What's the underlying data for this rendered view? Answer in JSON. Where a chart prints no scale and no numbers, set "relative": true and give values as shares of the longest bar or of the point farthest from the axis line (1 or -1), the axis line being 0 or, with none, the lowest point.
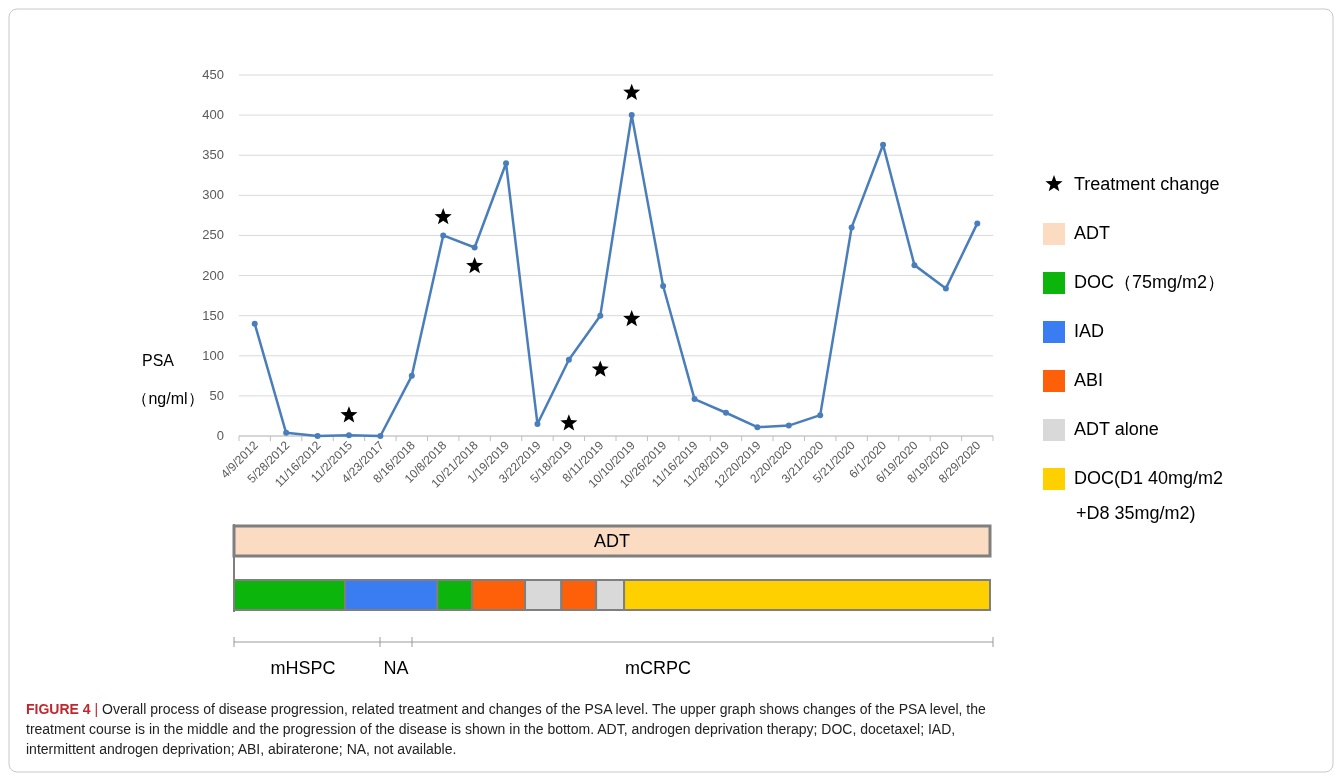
{
  "chart_data": [
    {
      "type": "line",
      "ylabel": "PSA\n（ng/ml）",
      "categories": [
        "4/9/2012",
        "5/28/2012",
        "11/16/2012",
        "11/2/2015",
        "4/23/2017",
        "8/16/2018",
        "10/8/2018",
        "10/21/2018",
        "1/19/2019",
        "3/22/2019",
        "5/18/2019",
        "8/11/2019",
        "10/10/2019",
        "10/26/2019",
        "11/16/2019",
        "11/28/2019",
        "12/20/2019",
        "2/20/2020",
        "3/21/2020",
        "5/21/2020",
        "6/1/2020",
        "6/19/2020",
        "8/19/2020",
        "8/29/2020"
      ],
      "series": [
        {
          "color": "#4a7ebb",
          "marker": "circle",
          "values": [
            140,
            4,
            0,
            1,
            0,
            75,
            250,
            235,
            340,
            15,
            95,
            150,
            400,
            187,
            46,
            29,
            11,
            13,
            26,
            260,
            363,
            213,
            184,
            265
          ]
        },
        {
          "type": "scatter",
          "name": "Treatment change",
          "color": "#000000",
          "marker": "star",
          "x": [
            "11/2/2015",
            "10/8/2018",
            "10/21/2018",
            "5/18/2019",
            "8/11/2019",
            "10/10/2019",
            "10/10/2019"
          ],
          "values": [
            26,
            273,
            212,
            16,
            83,
            146,
            428
          ]
        }
      ],
      "ylim": [
        0,
        450
      ],
      "yticks": [
        0,
        50,
        100,
        150,
        200,
        250,
        300,
        350,
        400,
        450
      ],
      "grid": "y",
      "legend": "right",
      "annotations": [
        "FIGURE 4 | Overall process of disease progression, related treatment and changes of the PSA level. The upper graph shows changes of the PSA level, the treatment course is in the middle and the progression of the disease is shown in the bottom. ADT, androgen deprivation therapy; DOC, docetaxel; IAD, intermittent androgen deprivation; ABI, abiraterone; NA, not available."
      ]
    },
    {
      "type": "bar",
      "orientation": "horizontal",
      "stacked": true,
      "relative": true,
      "categories": [
        null,
        null
      ],
      "legend": "right",
      "series": [
        {
          "name": "ADT",
          "color": "#fbdcc2",
          "values": [
            1,
            null
          ]
        },
        {
          "name": "DOC（75mg/m2）",
          "color": "#0cb50c",
          "values": [
            null,
            0.147
          ]
        },
        {
          "name": "IAD",
          "color": "#3a7cf2",
          "values": [
            null,
            0.122
          ]
        },
        {
          "color": "#0cb50c",
          "values": [
            null,
            0.046
          ]
        },
        {
          "name": "ABI",
          "color": "#fd6008",
          "values": [
            null,
            0.07
          ]
        },
        {
          "name": "ADT alone",
          "color": "#d9d9d9",
          "values": [
            null,
            0.048
          ]
        },
        {
          "color": "#fd6008",
          "values": [
            null,
            0.046
          ]
        },
        {
          "color": "#d9d9d9",
          "values": [
            null,
            0.037
          ]
        },
        {
          "name": "DOC(D1 40mg/m2\n+D8 35mg/m2)",
          "color": "#ffd000",
          "values": [
            null,
            0.484
          ]
        }
      ],
      "annotations": [
        "mHSPC",
        "NA",
        "mCRPC"
      ]
    }
  ]
}
